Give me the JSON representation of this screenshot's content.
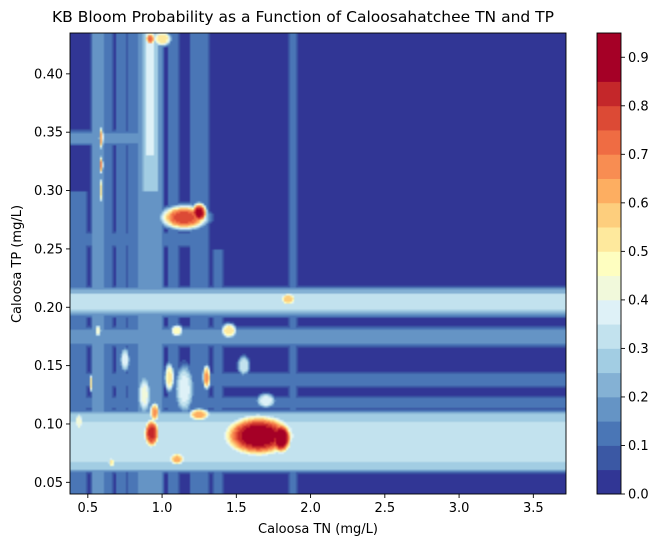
{
  "chart_data": {
    "type": "heatmap",
    "subtype": "filled-contour",
    "title": "KB Bloom Probability as a Function of Caloosahatchee TN and TP",
    "xlabel": "Caloosa TN (mg/L)",
    "ylabel": "Caloosa TP (mg/L)",
    "xlim": [
      0.38,
      3.72
    ],
    "ylim": [
      0.04,
      0.435
    ],
    "xticks": [
      0.5,
      1.0,
      1.5,
      2.0,
      2.5,
      3.0,
      3.5
    ],
    "xtick_labels": [
      "0.5",
      "1.0",
      "1.5",
      "2.0",
      "2.5",
      "3.0",
      "3.5"
    ],
    "yticks": [
      0.05,
      0.1,
      0.15,
      0.2,
      0.25,
      0.3,
      0.35,
      0.4
    ],
    "ytick_labels": [
      "0.05",
      "0.10",
      "0.15",
      "0.20",
      "0.25",
      "0.30",
      "0.35",
      "0.40"
    ],
    "colorbar": {
      "levels": [
        0.0,
        0.05,
        0.1,
        0.15,
        0.2,
        0.25,
        0.3,
        0.35,
        0.4,
        0.45,
        0.5,
        0.55,
        0.6,
        0.65,
        0.7,
        0.75,
        0.8,
        0.85,
        0.9,
        0.95
      ],
      "ticks": [
        0.0,
        0.1,
        0.2,
        0.3,
        0.4,
        0.5,
        0.6,
        0.7,
        0.8,
        0.9
      ],
      "tick_labels": [
        "0.0",
        "0.1",
        "0.2",
        "0.3",
        "0.4",
        "0.5",
        "0.6",
        "0.7",
        "0.8",
        "0.9"
      ],
      "colors": [
        "#313695",
        "#3b58a4",
        "#4a76b6",
        "#6594c5",
        "#84b1d4",
        "#a2cde3",
        "#c2e2ee",
        "#def1f7",
        "#f1f9db",
        "#fefec0",
        "#fee99d",
        "#fdce7d",
        "#fdae61",
        "#f88d52",
        "#ef6c43",
        "#dc4a35",
        "#c4272a",
        "#a50026"
      ],
      "range": [
        0.0,
        0.95
      ]
    },
    "background_value": 0.0,
    "bands": [
      {
        "orient": "h",
        "y": [
          0.062,
          0.108
        ],
        "x": [
          0.38,
          3.72
        ],
        "value": 0.27
      },
      {
        "orient": "h",
        "y": [
          0.068,
          0.102
        ],
        "x": [
          0.38,
          3.72
        ],
        "value": 0.31
      },
      {
        "orient": "h",
        "y": [
          0.195,
          0.214
        ],
        "x": [
          0.38,
          3.72
        ],
        "value": 0.22
      },
      {
        "orient": "h",
        "y": [
          0.199,
          0.21
        ],
        "x": [
          0.38,
          3.72
        ],
        "value": 0.34
      },
      {
        "orient": "h",
        "y": [
          0.17,
          0.18
        ],
        "x": [
          0.38,
          3.72
        ],
        "value": 0.17
      },
      {
        "orient": "h",
        "y": [
          0.134,
          0.141
        ],
        "x": [
          0.38,
          3.72
        ],
        "value": 0.13
      },
      {
        "orient": "h",
        "y": [
          0.115,
          0.121
        ],
        "x": [
          0.38,
          3.72
        ],
        "value": 0.11
      },
      {
        "orient": "h",
        "y": [
          0.342,
          0.348
        ],
        "x": [
          0.38,
          0.85
        ],
        "value": 0.17
      },
      {
        "orient": "h",
        "y": [
          0.255,
          0.262
        ],
        "x": [
          0.38,
          1.3
        ],
        "value": 0.13
      },
      {
        "orient": "v",
        "x": [
          0.38,
          0.48
        ],
        "y": [
          0.04,
          0.3
        ],
        "value": 0.13
      },
      {
        "orient": "v",
        "x": [
          0.54,
          0.6
        ],
        "y": [
          0.04,
          0.435
        ],
        "value": 0.17
      },
      {
        "orient": "v",
        "x": [
          0.62,
          0.66
        ],
        "y": [
          0.04,
          0.435
        ],
        "value": 0.11
      },
      {
        "orient": "v",
        "x": [
          0.7,
          0.75
        ],
        "y": [
          0.04,
          0.435
        ],
        "value": 0.11
      },
      {
        "orient": "v",
        "x": [
          0.78,
          0.84
        ],
        "y": [
          0.04,
          0.435
        ],
        "value": 0.13
      },
      {
        "orient": "v",
        "x": [
          0.84,
          1.0
        ],
        "y": [
          0.04,
          0.435
        ],
        "value": 0.17
      },
      {
        "orient": "v",
        "x": [
          0.88,
          0.97
        ],
        "y": [
          0.3,
          0.435
        ],
        "value": 0.27
      },
      {
        "orient": "v",
        "x": [
          0.9,
          0.94
        ],
        "y": [
          0.33,
          0.435
        ],
        "value": 0.36
      },
      {
        "orient": "v",
        "x": [
          1.05,
          1.1
        ],
        "y": [
          0.04,
          0.435
        ],
        "value": 0.11
      },
      {
        "orient": "v",
        "x": [
          1.2,
          1.26
        ],
        "y": [
          0.04,
          0.435
        ],
        "value": 0.13
      },
      {
        "orient": "v",
        "x": [
          1.28,
          1.31
        ],
        "y": [
          0.04,
          0.435
        ],
        "value": 0.11
      },
      {
        "orient": "v",
        "x": [
          1.35,
          1.4
        ],
        "y": [
          0.04,
          0.25
        ],
        "value": 0.11
      },
      {
        "orient": "v",
        "x": [
          1.86,
          1.9
        ],
        "y": [
          0.04,
          0.435
        ],
        "value": 0.11
      }
    ],
    "hotspots": [
      {
        "x": 1.65,
        "y": 0.09,
        "rx": 0.23,
        "ry": 0.017,
        "value": 0.9
      },
      {
        "x": 1.8,
        "y": 0.088,
        "rx": 0.07,
        "ry": 0.013,
        "value": 0.92
      },
      {
        "x": 1.15,
        "y": 0.277,
        "rx": 0.15,
        "ry": 0.01,
        "value": 0.78
      },
      {
        "x": 1.25,
        "y": 0.281,
        "rx": 0.05,
        "ry": 0.008,
        "value": 0.88
      },
      {
        "x": 0.59,
        "y": 0.345,
        "rx": 0.014,
        "ry": 0.009,
        "value": 0.62
      },
      {
        "x": 0.59,
        "y": 0.322,
        "rx": 0.013,
        "ry": 0.007,
        "value": 0.66
      },
      {
        "x": 0.59,
        "y": 0.3,
        "rx": 0.012,
        "ry": 0.01,
        "value": 0.52
      },
      {
        "x": 0.93,
        "y": 0.092,
        "rx": 0.05,
        "ry": 0.012,
        "value": 0.82
      },
      {
        "x": 0.95,
        "y": 0.11,
        "rx": 0.03,
        "ry": 0.008,
        "value": 0.66
      },
      {
        "x": 1.1,
        "y": 0.07,
        "rx": 0.05,
        "ry": 0.005,
        "value": 0.62
      },
      {
        "x": 1.3,
        "y": 0.14,
        "rx": 0.025,
        "ry": 0.01,
        "value": 0.66
      },
      {
        "x": 1.25,
        "y": 0.108,
        "rx": 0.07,
        "ry": 0.005,
        "value": 0.62
      },
      {
        "x": 1.85,
        "y": 0.207,
        "rx": 0.05,
        "ry": 0.005,
        "value": 0.6
      },
      {
        "x": 1.45,
        "y": 0.18,
        "rx": 0.05,
        "ry": 0.006,
        "value": 0.55
      },
      {
        "x": 1.1,
        "y": 0.18,
        "rx": 0.04,
        "ry": 0.005,
        "value": 0.48
      },
      {
        "x": 0.66,
        "y": 0.067,
        "rx": 0.02,
        "ry": 0.004,
        "value": 0.52
      },
      {
        "x": 0.52,
        "y": 0.135,
        "rx": 0.008,
        "ry": 0.007,
        "value": 0.55
      },
      {
        "x": 0.44,
        "y": 0.102,
        "rx": 0.025,
        "ry": 0.008,
        "value": 0.45
      },
      {
        "x": 0.57,
        "y": 0.18,
        "rx": 0.02,
        "ry": 0.005,
        "value": 0.45
      },
      {
        "x": 1.05,
        "y": 0.14,
        "rx": 0.03,
        "ry": 0.012,
        "value": 0.52
      },
      {
        "x": 0.88,
        "y": 0.125,
        "rx": 0.04,
        "ry": 0.015,
        "value": 0.42
      },
      {
        "x": 1.15,
        "y": 0.13,
        "rx": 0.06,
        "ry": 0.02,
        "value": 0.38
      },
      {
        "x": 1.0,
        "y": 0.43,
        "rx": 0.06,
        "ry": 0.006,
        "value": 0.55
      },
      {
        "x": 0.92,
        "y": 0.43,
        "rx": 0.03,
        "ry": 0.005,
        "value": 0.72
      },
      {
        "x": 1.55,
        "y": 0.15,
        "rx": 0.04,
        "ry": 0.008,
        "value": 0.35
      },
      {
        "x": 0.75,
        "y": 0.155,
        "rx": 0.03,
        "ry": 0.01,
        "value": 0.38
      },
      {
        "x": 1.7,
        "y": 0.12,
        "rx": 0.06,
        "ry": 0.006,
        "value": 0.4
      }
    ]
  }
}
